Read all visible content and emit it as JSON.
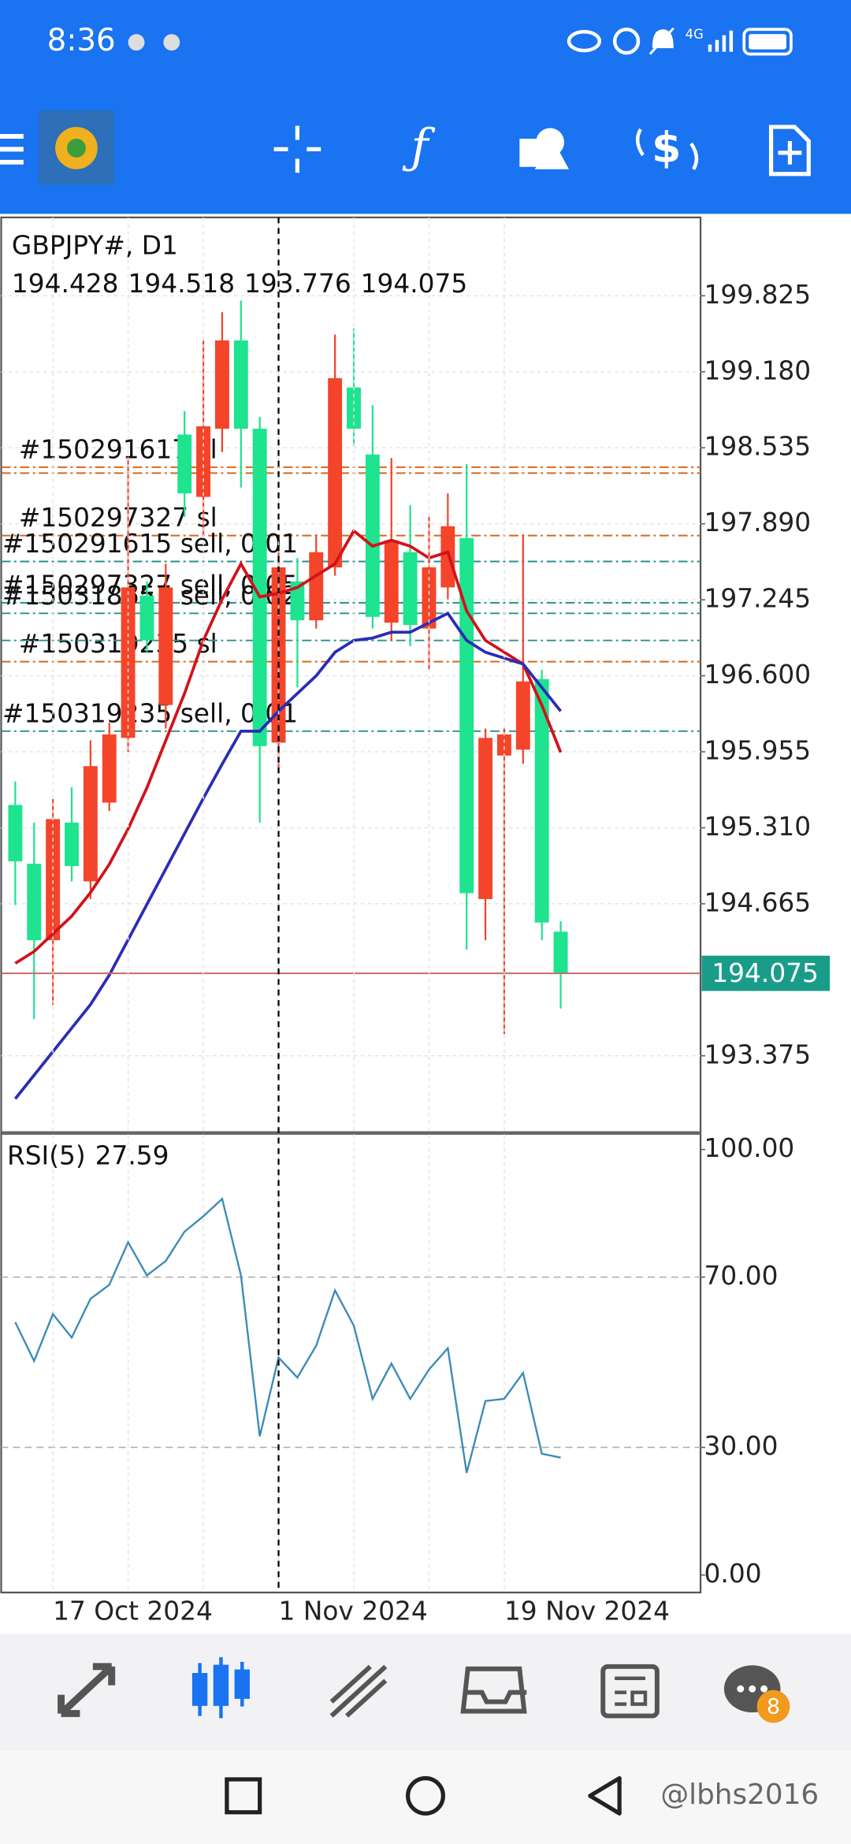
{
  "status_bar": {
    "time": "8:36",
    "network": "4G"
  },
  "chart_data": [
    {
      "type": "candlestick",
      "title": "GBPJPY#, D1",
      "open": [
        195.504,
        195.005,
        194.356,
        195.354,
        194.855,
        195.524,
        196.073,
        197.28,
        196.352,
        198.647,
        198.118,
        198.697,
        199.446,
        198.697,
        196.033,
        197.4,
        197.071,
        197.52,
        199.047,
        198.478,
        197.051,
        197.649,
        197.001,
        197.35,
        197.769,
        194.705,
        195.923,
        195.973,
        196.572,
        194.428
      ],
      "high": [
        195.703,
        195.354,
        195.554,
        195.653,
        196.053,
        196.202,
        198.448,
        197.4,
        197.55,
        198.847,
        199.446,
        199.685,
        199.785,
        198.797,
        197.649,
        197.599,
        197.799,
        199.496,
        199.546,
        198.897,
        198.448,
        198.049,
        197.949,
        198.148,
        198.398,
        196.152,
        196.152,
        197.799,
        196.651,
        194.518
      ],
      "low": [
        194.655,
        193.687,
        193.807,
        194.855,
        194.705,
        195.454,
        195.953,
        196.801,
        196.152,
        197.949,
        197.799,
        198.498,
        198.198,
        195.354,
        195.773,
        196.502,
        197.001,
        197.45,
        198.548,
        197.001,
        196.901,
        196.851,
        196.651,
        197.25,
        194.276,
        194.356,
        193.558,
        195.853,
        194.356,
        193.776
      ],
      "close": [
        195.025,
        194.356,
        195.384,
        194.985,
        195.833,
        196.102,
        197.35,
        196.901,
        197.35,
        198.148,
        198.717,
        199.446,
        198.697,
        196.003,
        197.52,
        197.071,
        197.649,
        199.126,
        198.697,
        197.1,
        197.749,
        197.031,
        197.52,
        197.869,
        194.755,
        196.073,
        196.102,
        196.552,
        194.506,
        194.075
      ],
      "up_color": "#f4442a",
      "down_color": "#1ee38f",
      "series": [
        {
          "color": "#d2121a",
          "values": [
            194.16,
            194.26,
            194.41,
            194.56,
            194.76,
            195.0,
            195.3,
            195.65,
            196.05,
            196.45,
            196.9,
            197.25,
            197.55,
            197.27,
            197.3,
            197.35,
            197.45,
            197.55,
            197.83,
            197.7,
            197.75,
            197.7,
            197.6,
            197.65,
            197.15,
            196.9,
            196.8,
            196.7,
            196.35,
            195.95
          ]
        },
        {
          "color": "#2b2cb5",
          "values": [
            193.01,
            193.21,
            193.41,
            193.61,
            193.81,
            194.06,
            194.36,
            194.66,
            194.96,
            195.26,
            195.56,
            195.85,
            196.13,
            196.13,
            196.3,
            196.45,
            196.6,
            196.8,
            196.9,
            196.92,
            196.97,
            196.97,
            197.05,
            197.13,
            196.9,
            196.8,
            196.75,
            196.7,
            196.5,
            196.3
          ]
        }
      ],
      "ylim": [
        192.73,
        200.49
      ],
      "yticks": [
        199.825,
        {
          "value": 199.18,
          "label": "199.180"
        },
        198.535,
        {
          "value": 197.89,
          "label": "197.890"
        },
        197.245,
        {
          "value": 196.6,
          "label": "196.600"
        },
        195.955,
        {
          "value": 195.31,
          "label": "195.310"
        },
        194.665,
        193.375
      ],
      "grid": true,
      "orders": [
        {
          "label": "#150291617 sl",
          "price": 198.37,
          "kind": "sl"
        },
        {
          "price": 198.32,
          "kind": "sl"
        },
        {
          "label": "#150297327 sl",
          "price": 197.79,
          "kind": "sl"
        },
        {
          "label": "#150319235 sl",
          "price": 196.72,
          "kind": "sl"
        },
        {
          "label": "#150291615 sell, 0.01",
          "price": 197.57,
          "kind": "sell"
        },
        {
          "label": "#150297327 sell, 0.05",
          "price": 197.22,
          "kind": "sell"
        },
        {
          "label": "#150318657 sell, 0.02",
          "price": 197.13,
          "kind": "sell"
        },
        {
          "price": 196.9,
          "kind": "sell"
        },
        {
          "label": "#150319235 sell, 0.01",
          "price": 196.13,
          "kind": "sell"
        }
      ],
      "sl_color": "#d2691e",
      "sell_color": "#2a8f8f",
      "last_price": 194.075,
      "last_price_color": "#1a9c8a"
    },
    {
      "type": "line",
      "title": "RSI(5)",
      "categories": [
        null,
        null,
        "17 Oct 2024",
        null,
        null,
        null,
        null,
        null,
        null,
        null,
        null,
        null,
        null,
        null,
        "1 Nov 2024",
        null,
        null,
        null,
        null,
        null,
        null,
        null,
        null,
        null,
        null,
        null,
        "19 Nov 2024",
        null,
        null,
        null
      ],
      "values": [
        59.4,
        50.3,
        61.3,
        55.8,
        64.9,
        68.2,
        78.2,
        70.4,
        73.8,
        80.7,
        84.3,
        88.4,
        70.4,
        32.6,
        51.1,
        46.4,
        53.9,
        66.9,
        58.6,
        41.4,
        49.7,
        41.4,
        48.3,
        53.3,
        24.0,
        40.9,
        41.4,
        47.5,
        28.5,
        27.59
      ],
      "color": "#3d8cb8",
      "ylim": [
        -4.1,
        103.6
      ],
      "yticks": [
        {
          "value": 100,
          "label": "100.00"
        },
        {
          "value": 70,
          "label": "70.00"
        },
        {
          "value": 30,
          "label": "30.00"
        },
        {
          "value": 0,
          "label": "0.00"
        }
      ],
      "levels": [
        70,
        30
      ]
    }
  ],
  "bottom_nav": {
    "badge": 8
  },
  "watermark": "@lbhs2016"
}
